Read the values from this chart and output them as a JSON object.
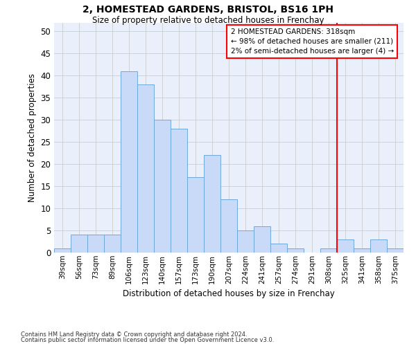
{
  "title": "2, HOMESTEAD GARDENS, BRISTOL, BS16 1PH",
  "subtitle": "Size of property relative to detached houses in Frenchay",
  "xlabel": "Distribution of detached houses by size in Frenchay",
  "ylabel": "Number of detached properties",
  "categories": [
    "39sqm",
    "56sqm",
    "73sqm",
    "89sqm",
    "106sqm",
    "123sqm",
    "140sqm",
    "157sqm",
    "173sqm",
    "190sqm",
    "207sqm",
    "224sqm",
    "241sqm",
    "257sqm",
    "274sqm",
    "291sqm",
    "308sqm",
    "325sqm",
    "341sqm",
    "358sqm",
    "375sqm"
  ],
  "values": [
    1,
    4,
    4,
    4,
    41,
    38,
    30,
    28,
    17,
    22,
    12,
    5,
    6,
    2,
    1,
    0,
    1,
    3,
    1,
    3,
    1
  ],
  "bar_color": "#c9daf8",
  "bar_edge_color": "#6fa8dc",
  "grid_color": "#cccccc",
  "vline_x": 16.5,
  "vline_color": "red",
  "annotation_text": "2 HOMESTEAD GARDENS: 318sqm\n← 98% of detached houses are smaller (211)\n2% of semi-detached houses are larger (4) →",
  "annotation_box_color": "white",
  "annotation_border_color": "red",
  "ylim": [
    0,
    52
  ],
  "yticks": [
    0,
    5,
    10,
    15,
    20,
    25,
    30,
    35,
    40,
    45,
    50
  ],
  "footer_line1": "Contains HM Land Registry data © Crown copyright and database right 2024.",
  "footer_line2": "Contains public sector information licensed under the Open Government Licence v3.0.",
  "bg_color": "#ffffff",
  "plot_bg_color": "#eaf0fb"
}
